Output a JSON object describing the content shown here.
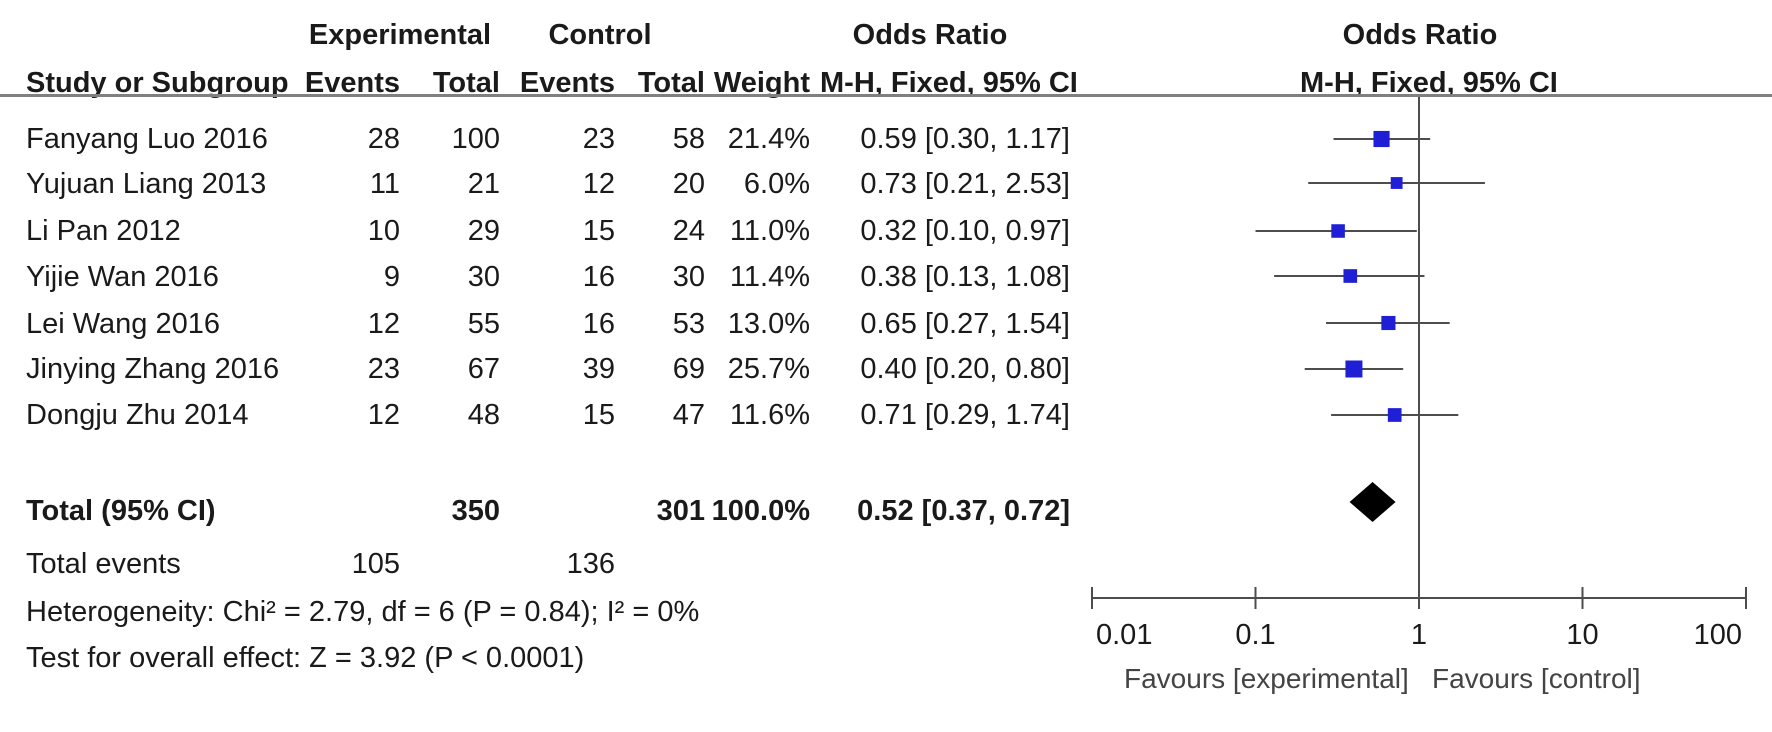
{
  "header": {
    "experimental": "Experimental",
    "control": "Control",
    "odds_ratio_left": "Odds Ratio",
    "odds_ratio_right": "Odds Ratio",
    "study_col": "Study or Subgroup",
    "events": "Events",
    "total": "Total",
    "weight": "Weight",
    "method_left": "M-H, Fixed, 95% CI",
    "method_right": "M-H, Fixed, 95% CI"
  },
  "studies": [
    {
      "name": "Fanyang Luo 2016",
      "exp_events": "28",
      "exp_total": "100",
      "ctl_events": "23",
      "ctl_total": "58",
      "weight": "21.4%",
      "ci_text": "0.59 [0.30, 1.17]"
    },
    {
      "name": "Yujuan Liang 2013",
      "exp_events": "11",
      "exp_total": "21",
      "ctl_events": "12",
      "ctl_total": "20",
      "weight": "6.0%",
      "ci_text": "0.73 [0.21, 2.53]"
    },
    {
      "name": "Li Pan 2012",
      "exp_events": "10",
      "exp_total": "29",
      "ctl_events": "15",
      "ctl_total": "24",
      "weight": "11.0%",
      "ci_text": "0.32 [0.10, 0.97]"
    },
    {
      "name": "Yijie Wan 2016",
      "exp_events": "9",
      "exp_total": "30",
      "ctl_events": "16",
      "ctl_total": "30",
      "weight": "11.4%",
      "ci_text": "0.38 [0.13, 1.08]"
    },
    {
      "name": "Lei Wang 2016",
      "exp_events": "12",
      "exp_total": "55",
      "ctl_events": "16",
      "ctl_total": "53",
      "weight": "13.0%",
      "ci_text": "0.65 [0.27, 1.54]"
    },
    {
      "name": "Jinying Zhang 2016",
      "exp_events": "23",
      "exp_total": "67",
      "ctl_events": "39",
      "ctl_total": "69",
      "weight": "25.7%",
      "ci_text": "0.40 [0.20, 0.80]"
    },
    {
      "name": "Dongju Zhu 2014",
      "exp_events": "12",
      "exp_total": "48",
      "ctl_events": "15",
      "ctl_total": "47",
      "weight": "11.6%",
      "ci_text": "0.71 [0.29, 1.74]"
    }
  ],
  "total": {
    "label": "Total (95% CI)",
    "exp_total": "350",
    "ctl_total": "301",
    "weight": "100.0%",
    "ci_text": "0.52 [0.37, 0.72]"
  },
  "total_events": {
    "label": "Total events",
    "exp": "105",
    "ctl": "136"
  },
  "heterogeneity": "Heterogeneity: Chi² = 2.79, df = 6 (P = 0.84); I² = 0%",
  "overall_effect": "Test for overall effect: Z = 3.92 (P < 0.0001)",
  "axis": {
    "favours_left": "Favours [experimental]",
    "favours_right": "Favours [control]"
  },
  "colors": {
    "study_marker": "#1f1fd6",
    "summary_diamond": "#000000",
    "line": "#4d4d4d"
  },
  "chart_data": {
    "type": "forest",
    "scale": "log",
    "xlim": [
      0.01,
      100
    ],
    "ticks": [
      0.01,
      0.1,
      1,
      10,
      100
    ],
    "tick_labels": [
      "0.01",
      "0.1",
      "1",
      "10",
      "100"
    ],
    "reference_line": 1,
    "studies": [
      {
        "or": 0.59,
        "lo": 0.3,
        "hi": 1.17,
        "weight": 21.4
      },
      {
        "or": 0.73,
        "lo": 0.21,
        "hi": 2.53,
        "weight": 6.0
      },
      {
        "or": 0.32,
        "lo": 0.1,
        "hi": 0.97,
        "weight": 11.0
      },
      {
        "or": 0.38,
        "lo": 0.13,
        "hi": 1.08,
        "weight": 11.4
      },
      {
        "or": 0.65,
        "lo": 0.27,
        "hi": 1.54,
        "weight": 13.0
      },
      {
        "or": 0.4,
        "lo": 0.2,
        "hi": 0.8,
        "weight": 25.7
      },
      {
        "or": 0.71,
        "lo": 0.29,
        "hi": 1.74,
        "weight": 11.6
      }
    ],
    "summary": {
      "or": 0.52,
      "lo": 0.37,
      "hi": 0.72
    }
  }
}
